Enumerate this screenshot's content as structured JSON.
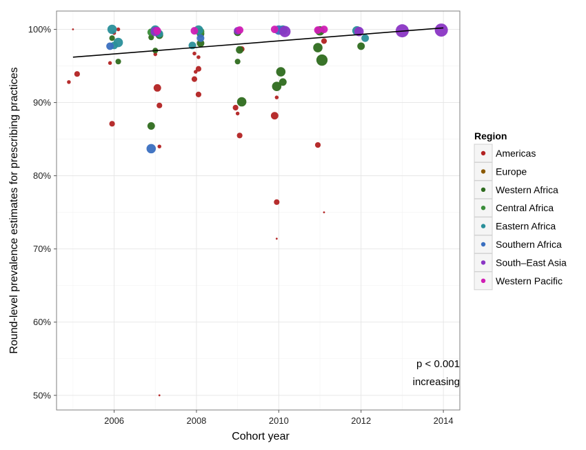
{
  "chart_data": {
    "type": "scatter",
    "title": "",
    "xlabel": "Cohort year",
    "ylabel": "Round-level prevalence estimates for prescribing practices",
    "xlim": [
      2004.6,
      2014.4
    ],
    "ylim": [
      48,
      102.5
    ],
    "x_ticks": [
      2006,
      2008,
      2010,
      2012,
      2014
    ],
    "x_tick_labels": [
      "2006",
      "2008",
      "2010",
      "2012",
      "2014"
    ],
    "y_ticks": [
      50,
      60,
      70,
      80,
      90,
      100
    ],
    "y_tick_labels": [
      "50%",
      "60%",
      "70%",
      "80%",
      "90%",
      "100%"
    ],
    "grid": true,
    "legend": {
      "title": "Region",
      "placement": "right",
      "entries": [
        "Americas",
        "Europe",
        "Western Africa",
        "Central Africa",
        "Eastern Africa",
        "Southern Africa",
        "South–East Asia",
        "Western Pacific"
      ]
    },
    "annotations": [
      "p < 0.001",
      "increasing"
    ],
    "trend_line": {
      "x": [
        2005,
        2014
      ],
      "y": [
        96.2,
        100.2
      ]
    },
    "series": [
      {
        "name": "Americas",
        "color": "#b22222",
        "points": [
          {
            "x": 2005.0,
            "y": 100.0,
            "size": 1
          },
          {
            "x": 2004.9,
            "y": 92.8,
            "size": 2
          },
          {
            "x": 2005.1,
            "y": 93.9,
            "size": 3
          },
          {
            "x": 2006.0,
            "y": 99.5,
            "size": 2
          },
          {
            "x": 2006.1,
            "y": 100.0,
            "size": 2
          },
          {
            "x": 2005.9,
            "y": 95.4,
            "size": 2
          },
          {
            "x": 2005.95,
            "y": 87.1,
            "size": 3
          },
          {
            "x": 2007.0,
            "y": 96.6,
            "size": 2
          },
          {
            "x": 2007.05,
            "y": 92.0,
            "size": 4
          },
          {
            "x": 2007.1,
            "y": 89.6,
            "size": 3
          },
          {
            "x": 2007.1,
            "y": 84.0,
            "size": 2
          },
          {
            "x": 2007.1,
            "y": 50.0,
            "size": 1
          },
          {
            "x": 2007.95,
            "y": 96.7,
            "size": 2
          },
          {
            "x": 2008.05,
            "y": 96.2,
            "size": 2
          },
          {
            "x": 2008.05,
            "y": 94.6,
            "size": 3
          },
          {
            "x": 2007.98,
            "y": 94.2,
            "size": 2
          },
          {
            "x": 2007.95,
            "y": 93.2,
            "size": 3
          },
          {
            "x": 2008.05,
            "y": 91.1,
            "size": 3
          },
          {
            "x": 2008.95,
            "y": 89.3,
            "size": 3
          },
          {
            "x": 2009.0,
            "y": 88.5,
            "size": 2
          },
          {
            "x": 2009.05,
            "y": 85.5,
            "size": 3
          },
          {
            "x": 2009.1,
            "y": 97.3,
            "size": 3
          },
          {
            "x": 2009.9,
            "y": 88.2,
            "size": 4
          },
          {
            "x": 2009.95,
            "y": 90.7,
            "size": 2
          },
          {
            "x": 2009.95,
            "y": 76.4,
            "size": 3
          },
          {
            "x": 2009.95,
            "y": 71.4,
            "size": 1
          },
          {
            "x": 2010.95,
            "y": 84.2,
            "size": 3
          },
          {
            "x": 2011.1,
            "y": 98.4,
            "size": 3
          },
          {
            "x": 2011.1,
            "y": 75.0,
            "size": 1
          }
        ]
      },
      {
        "name": "Europe",
        "color": "#8b5a00",
        "points": []
      },
      {
        "name": "Western Africa",
        "color": "#2e6b1e",
        "points": [
          {
            "x": 2006.1,
            "y": 95.6,
            "size": 3
          },
          {
            "x": 2005.95,
            "y": 98.8,
            "size": 3
          },
          {
            "x": 2007.0,
            "y": 97.1,
            "size": 3
          },
          {
            "x": 2006.9,
            "y": 98.9,
            "size": 3
          },
          {
            "x": 2006.9,
            "y": 86.8,
            "size": 4
          },
          {
            "x": 2007.1,
            "y": 99.2,
            "size": 4
          },
          {
            "x": 2008.1,
            "y": 99.4,
            "size": 4
          },
          {
            "x": 2008.1,
            "y": 98.1,
            "size": 4
          },
          {
            "x": 2009.0,
            "y": 95.6,
            "size": 3
          },
          {
            "x": 2009.1,
            "y": 90.1,
            "size": 5
          },
          {
            "x": 2009.05,
            "y": 97.2,
            "size": 4
          },
          {
            "x": 2009.0,
            "y": 99.6,
            "size": 4
          },
          {
            "x": 2009.95,
            "y": 92.2,
            "size": 5
          },
          {
            "x": 2010.05,
            "y": 94.2,
            "size": 5
          },
          {
            "x": 2010.1,
            "y": 92.8,
            "size": 4
          },
          {
            "x": 2010.95,
            "y": 97.5,
            "size": 5
          },
          {
            "x": 2011.05,
            "y": 95.8,
            "size": 6
          },
          {
            "x": 2011.0,
            "y": 99.8,
            "size": 5
          },
          {
            "x": 2012.0,
            "y": 97.7,
            "size": 4
          }
        ]
      },
      {
        "name": "Central Africa",
        "color": "#3a8d3a",
        "points": [
          {
            "x": 2006.9,
            "y": 99.6,
            "size": 4
          },
          {
            "x": 2008.1,
            "y": 99.7,
            "size": 4
          }
        ]
      },
      {
        "name": "Eastern Africa",
        "color": "#2a8f9a",
        "points": [
          {
            "x": 2005.95,
            "y": 100.0,
            "size": 5
          },
          {
            "x": 2006.1,
            "y": 98.2,
            "size": 5
          },
          {
            "x": 2006.0,
            "y": 97.8,
            "size": 4
          },
          {
            "x": 2007.0,
            "y": 99.9,
            "size": 5
          },
          {
            "x": 2007.1,
            "y": 99.4,
            "size": 4
          },
          {
            "x": 2007.9,
            "y": 97.8,
            "size": 4
          },
          {
            "x": 2008.05,
            "y": 99.9,
            "size": 5
          },
          {
            "x": 2010.1,
            "y": 99.9,
            "size": 5
          },
          {
            "x": 2011.9,
            "y": 99.8,
            "size": 5
          },
          {
            "x": 2012.1,
            "y": 98.8,
            "size": 4
          }
        ]
      },
      {
        "name": "Southern Africa",
        "color": "#3a6fc0",
        "points": [
          {
            "x": 2005.9,
            "y": 97.7,
            "size": 4
          },
          {
            "x": 2006.9,
            "y": 83.7,
            "size": 5
          },
          {
            "x": 2008.1,
            "y": 98.8,
            "size": 4
          },
          {
            "x": 2010.0,
            "y": 99.9,
            "size": 5
          }
        ]
      },
      {
        "name": "South–East Asia",
        "color": "#8a35c4",
        "points": [
          {
            "x": 2007.0,
            "y": 99.7,
            "size": 5
          },
          {
            "x": 2009.0,
            "y": 99.8,
            "size": 4
          },
          {
            "x": 2010.15,
            "y": 99.7,
            "size": 6
          },
          {
            "x": 2011.95,
            "y": 99.7,
            "size": 5
          },
          {
            "x": 2013.0,
            "y": 99.8,
            "size": 7
          },
          {
            "x": 2013.95,
            "y": 99.9,
            "size": 7
          }
        ]
      },
      {
        "name": "Western Pacific",
        "color": "#d01eb4",
        "points": [
          {
            "x": 2007.05,
            "y": 99.8,
            "size": 4
          },
          {
            "x": 2007.95,
            "y": 99.8,
            "size": 4
          },
          {
            "x": 2009.05,
            "y": 99.9,
            "size": 4
          },
          {
            "x": 2009.9,
            "y": 100.0,
            "size": 4
          },
          {
            "x": 2010.95,
            "y": 99.9,
            "size": 4
          },
          {
            "x": 2011.1,
            "y": 100.0,
            "size": 4
          }
        ]
      }
    ]
  }
}
